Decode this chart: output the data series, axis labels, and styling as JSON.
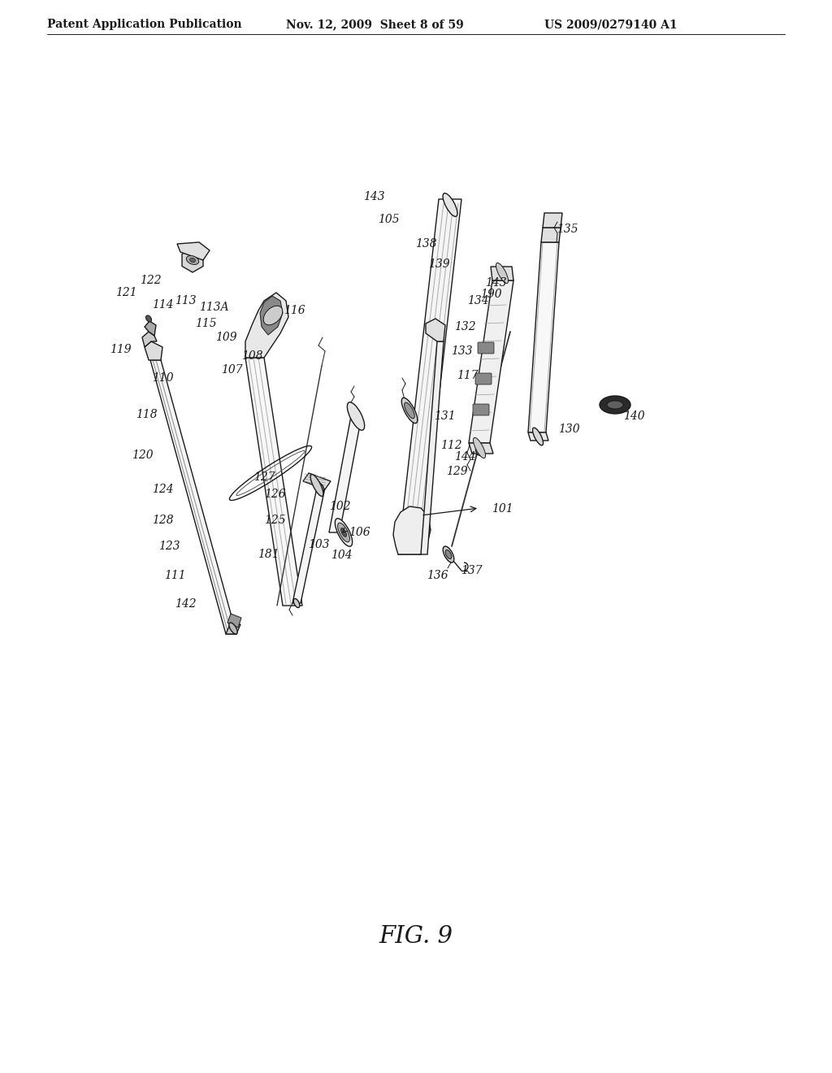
{
  "header_left": "Patent Application Publication",
  "header_mid": "Nov. 12, 2009  Sheet 8 of 59",
  "header_right": "US 2009/0279140 A1",
  "fig_label": "FIG. 9",
  "bg": "#ffffff",
  "lc": "#1a1a1a",
  "lfs": 10,
  "hfs": 10,
  "tfs": 21
}
